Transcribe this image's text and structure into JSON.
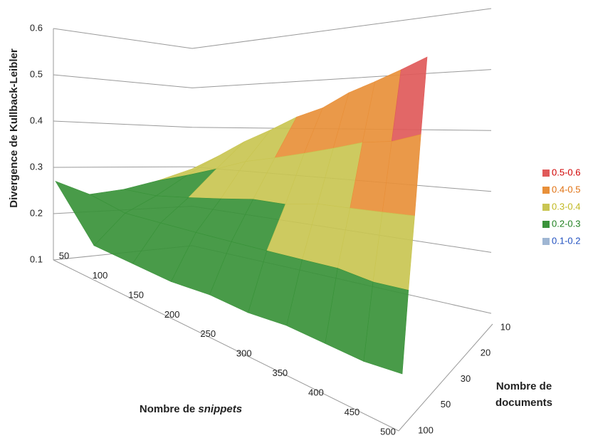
{
  "chart_data": {
    "type": "surface",
    "ylabel": "Divergence de Kullback-Leibler",
    "xlabel": {
      "text": "Nombre de",
      "emphasis": "snippets"
    },
    "zlabel": [
      "Nombre de",
      "documents"
    ],
    "categories": [
      50,
      100,
      150,
      200,
      250,
      300,
      350,
      400,
      450,
      500
    ],
    "depth_categories": [
      10,
      20,
      30,
      50,
      100
    ],
    "values": [
      [
        0.3,
        0.34,
        0.38,
        0.41,
        0.44,
        0.46,
        0.49,
        0.51,
        0.53,
        0.55
      ],
      [
        0.27,
        0.3,
        0.33,
        0.36,
        0.38,
        0.4,
        0.42,
        0.44,
        0.45,
        0.47
      ],
      [
        0.25,
        0.26,
        0.28,
        0.3,
        0.32,
        0.33,
        0.35,
        0.36,
        0.37,
        0.38
      ],
      [
        0.24,
        0.23,
        0.24,
        0.25,
        0.26,
        0.27,
        0.28,
        0.29,
        0.29,
        0.3
      ],
      [
        0.27,
        0.17,
        0.17,
        0.17,
        0.18,
        0.18,
        0.19,
        0.19,
        0.19,
        0.2
      ]
    ],
    "ylim": [
      0.1,
      0.6
    ],
    "yticks": [
      0.1,
      0.2,
      0.3,
      0.4,
      0.5,
      0.6
    ],
    "grid": true,
    "series": [
      {
        "name": "0.5-0.6",
        "color": "#e05a5a",
        "range": [
          0.5,
          0.6
        ]
      },
      {
        "name": "0.4-0.5",
        "color": "#e8903a",
        "range": [
          0.4,
          0.5
        ]
      },
      {
        "name": "0.3-0.4",
        "color": "#c9c552",
        "range": [
          0.3,
          0.4
        ]
      },
      {
        "name": "0.2-0.3",
        "color": "#3a933a",
        "range": [
          0.2,
          0.3
        ]
      },
      {
        "name": "0.1-0.2",
        "color": "#9fb6d3",
        "range": [
          0.1,
          0.2
        ]
      }
    ],
    "legend_colors": [
      "#d00000",
      "#e07010",
      "#c0b820",
      "#208020",
      "#2050c0"
    ]
  }
}
